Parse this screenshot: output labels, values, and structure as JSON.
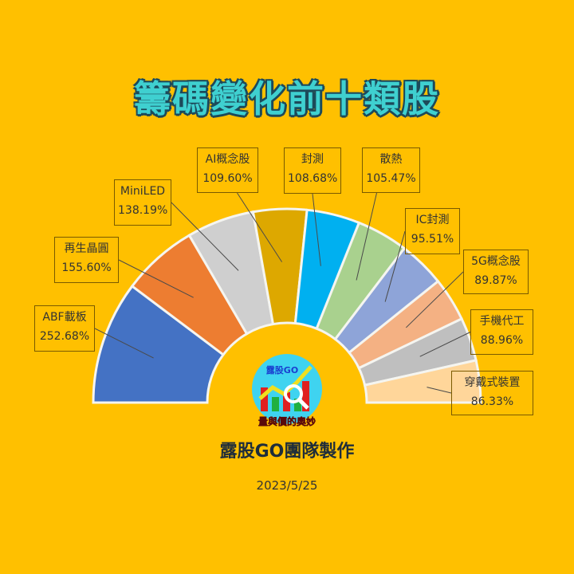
{
  "chart_data": {
    "type": "pie",
    "subtype": "half-doughnut",
    "title": "籌碼變化前十類股",
    "categories": [
      "ABF載板",
      "再生晶圓",
      "MiniLED",
      "AI概念股",
      "封測",
      "散熱",
      "IC封測",
      "5G概念股",
      "手機代工",
      "穿戴式裝置"
    ],
    "values": [
      252.68,
      155.6,
      138.19,
      109.6,
      108.68,
      105.47,
      95.51,
      89.87,
      88.96,
      86.33
    ],
    "value_labels": [
      "252.68%",
      "155.60%",
      "138.19%",
      "109.60%",
      "108.68%",
      "105.47%",
      "95.51%",
      "89.87%",
      "88.96%",
      "86.33%"
    ],
    "colors": [
      "#4472C4",
      "#ED7D31",
      "#CFCFCF",
      "#DDA800",
      "#00B0F0",
      "#A9D18E",
      "#8EA4D8",
      "#F4B183",
      "#BFBFBF",
      "#FFD69A"
    ],
    "legend": "none"
  },
  "background": "#FFC000",
  "logo": {
    "text_top": "露股GO",
    "text_bottom": "量與價的奧妙"
  },
  "credit": "露股GO團隊製作",
  "date": "2023/5/25"
}
